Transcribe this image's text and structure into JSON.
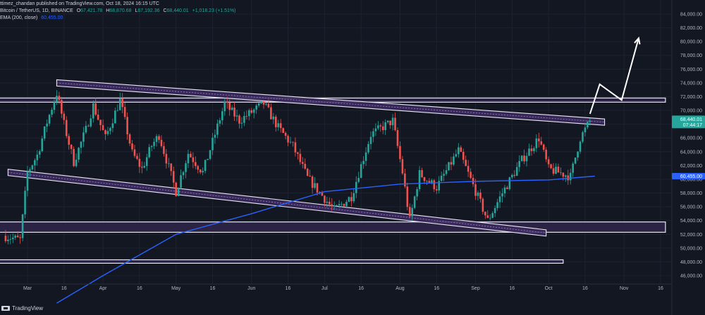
{
  "header": {
    "publisher": "ttimez_chandan published on TradingView.com, Oct 18, 2024 16:15 UTC",
    "symbol": "Bitcoin / TetherUS, 1D, BINANCE",
    "open_label": "O",
    "open": "67,421.78",
    "high_label": "H",
    "high": "68,870.68",
    "low_label": "L",
    "low": "67,192.36",
    "close_label": "C",
    "close": "68,440.01",
    "change": "+1,018.23 (+1.51%)",
    "ema_label": "EMA (200, close)",
    "ema_value": "60,455.00"
  },
  "footer": {
    "logo_text": "TradingView"
  },
  "colors": {
    "background": "#131722",
    "up": "#26a69a",
    "down": "#ef5350",
    "ema": "#2962ff",
    "channel_fill": "#3b2a5c",
    "price_tag": "#26a69a"
  },
  "chart_data": {
    "type": "candlestick",
    "symbol": "BTCUSDT",
    "interval": "1D",
    "y_ticks": [
      46000,
      48000,
      50000,
      52000,
      54000,
      56000,
      58000,
      60000,
      62000,
      64000,
      66000,
      68000,
      70000,
      72000,
      74000,
      76000,
      78000,
      80000,
      82000,
      84000
    ],
    "y_tick_labels": [
      "46,000.00",
      "48,000.00",
      "50,000.00",
      "52,000.00",
      "54,000.00",
      "56,000.00",
      "58,000.00",
      "60,000.00",
      "62,000.00",
      "64,000.00",
      "66,000.00",
      "68,000.00",
      "70,000.00",
      "72,000.00",
      "74,000.00",
      "76,000.00",
      "78,000.00",
      "80,000.00",
      "82,000.00",
      "84,000.00"
    ],
    "x_tick_labels": [
      {
        "date": "2024-03-01",
        "label": "Mar"
      },
      {
        "date": "2024-03-16",
        "label": "16"
      },
      {
        "date": "2024-04-01",
        "label": "Apr"
      },
      {
        "date": "2024-04-16",
        "label": "16"
      },
      {
        "date": "2024-05-01",
        "label": "May"
      },
      {
        "date": "2024-05-16",
        "label": "16"
      },
      {
        "date": "2024-06-01",
        "label": "Jun"
      },
      {
        "date": "2024-06-16",
        "label": "16"
      },
      {
        "date": "2024-07-01",
        "label": "Jul"
      },
      {
        "date": "2024-07-16",
        "label": "16"
      },
      {
        "date": "2024-08-01",
        "label": "Aug"
      },
      {
        "date": "2024-08-16",
        "label": "16"
      },
      {
        "date": "2024-09-01",
        "label": "Sep"
      },
      {
        "date": "2024-09-16",
        "label": "16"
      },
      {
        "date": "2024-10-01",
        "label": "Oct"
      },
      {
        "date": "2024-10-16",
        "label": "16"
      },
      {
        "date": "2024-11-01",
        "label": "Nov"
      },
      {
        "date": "2024-11-16",
        "label": "16"
      }
    ],
    "close_path": [
      {
        "date": "2024-02-20",
        "price": 51800
      },
      {
        "date": "2024-02-27",
        "price": 51200
      },
      {
        "date": "2024-03-01",
        "price": 61000
      },
      {
        "date": "2024-03-05",
        "price": 63500
      },
      {
        "date": "2024-03-09",
        "price": 68300
      },
      {
        "date": "2024-03-13",
        "price": 72500
      },
      {
        "date": "2024-03-16",
        "price": 68000
      },
      {
        "date": "2024-03-20",
        "price": 62500
      },
      {
        "date": "2024-03-25",
        "price": 67200
      },
      {
        "date": "2024-03-28",
        "price": 70700
      },
      {
        "date": "2024-04-02",
        "price": 66000
      },
      {
        "date": "2024-04-08",
        "price": 71500
      },
      {
        "date": "2024-04-13",
        "price": 63800
      },
      {
        "date": "2024-04-17",
        "price": 61500
      },
      {
        "date": "2024-04-21",
        "price": 64900
      },
      {
        "date": "2024-04-24",
        "price": 66400
      },
      {
        "date": "2024-05-01",
        "price": 58200
      },
      {
        "date": "2024-05-06",
        "price": 63800
      },
      {
        "date": "2024-05-12",
        "price": 61000
      },
      {
        "date": "2024-05-21",
        "price": 71000
      },
      {
        "date": "2024-05-27",
        "price": 68500
      },
      {
        "date": "2024-06-06",
        "price": 71000
      },
      {
        "date": "2024-06-12",
        "price": 67500
      },
      {
        "date": "2024-06-18",
        "price": 64800
      },
      {
        "date": "2024-06-24",
        "price": 60200
      },
      {
        "date": "2024-07-05",
        "price": 55500
      },
      {
        "date": "2024-07-12",
        "price": 57500
      },
      {
        "date": "2024-07-20",
        "price": 66500
      },
      {
        "date": "2024-07-29",
        "price": 68500
      },
      {
        "date": "2024-08-02",
        "price": 61000
      },
      {
        "date": "2024-08-05",
        "price": 54000
      },
      {
        "date": "2024-08-09",
        "price": 60800
      },
      {
        "date": "2024-08-16",
        "price": 58800
      },
      {
        "date": "2024-08-25",
        "price": 64200
      },
      {
        "date": "2024-09-06",
        "price": 54000
      },
      {
        "date": "2024-09-12",
        "price": 58000
      },
      {
        "date": "2024-09-20",
        "price": 62800
      },
      {
        "date": "2024-09-27",
        "price": 66000
      },
      {
        "date": "2024-10-01",
        "price": 61500
      },
      {
        "date": "2024-10-10",
        "price": 60400
      },
      {
        "date": "2024-10-14",
        "price": 66000
      },
      {
        "date": "2024-10-18",
        "price": 68440
      }
    ],
    "ema_200": [
      {
        "date": "2024-03-13",
        "price": 42000
      },
      {
        "date": "2024-04-01",
        "price": 46000
      },
      {
        "date": "2024-05-01",
        "price": 52000
      },
      {
        "date": "2024-06-01",
        "price": 55000
      },
      {
        "date": "2024-07-01",
        "price": 58200
      },
      {
        "date": "2024-08-01",
        "price": 59300
      },
      {
        "date": "2024-09-01",
        "price": 59700
      },
      {
        "date": "2024-10-01",
        "price": 59900
      },
      {
        "date": "2024-10-20",
        "price": 60455
      }
    ],
    "descending_channel": {
      "upper": [
        {
          "date": "2024-03-13",
          "price": 74000
        },
        {
          "date": "2024-10-24",
          "price": 68300
        }
      ],
      "lower": [
        {
          "date": "2024-02-22",
          "price": 61000
        },
        {
          "date": "2024-09-30",
          "price": 52200
        }
      ]
    },
    "horizontal_zones": [
      {
        "from": "2024-02-14",
        "to": "2024-11-18",
        "price_low": 71200,
        "price_high": 71800
      },
      {
        "from": "2024-02-14",
        "to": "2024-11-18",
        "price_low": 52300,
        "price_high": 53800
      },
      {
        "from": "2024-02-14",
        "to": "2024-10-07",
        "price_low": 47800,
        "price_high": 48300
      }
    ],
    "projection_arrow": [
      {
        "date": "2024-10-18",
        "price": 69500
      },
      {
        "date": "2024-10-22",
        "price": 73800
      },
      {
        "date": "2024-10-31",
        "price": 71500
      },
      {
        "date": "2024-11-07",
        "price": 80500
      }
    ],
    "last_price_label": "68,440.01",
    "countdown_label": "07:44:17",
    "ema_label_value": "60,455.00"
  }
}
